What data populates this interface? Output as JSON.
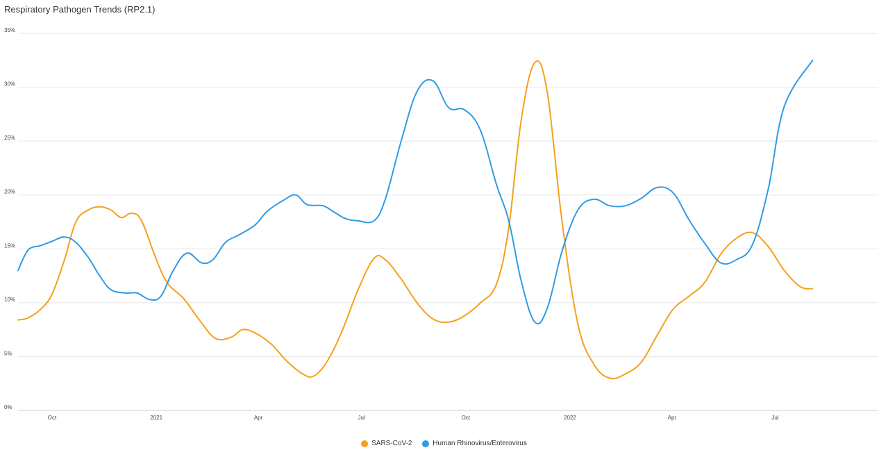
{
  "chart_data": {
    "type": "line",
    "title": "Respiratory Pathogen Trends (RP2.1)",
    "xlabel": "",
    "ylabel": "",
    "ylim": [
      0,
      35
    ],
    "y_ticks": [
      "0%",
      "5%",
      "10%",
      "15%",
      "20%",
      "25%",
      "30%",
      "35%"
    ],
    "x_range": [
      "2020-09-01",
      "2022-09-30"
    ],
    "x_ticks": [
      {
        "date": "2020-10-01",
        "label": "Oct"
      },
      {
        "date": "2021-01-01",
        "label": "2021"
      },
      {
        "date": "2021-04-01",
        "label": "Apr"
      },
      {
        "date": "2021-07-01",
        "label": "Jul"
      },
      {
        "date": "2021-10-01",
        "label": "Oct"
      },
      {
        "date": "2022-01-01",
        "label": "2022"
      },
      {
        "date": "2022-04-01",
        "label": "Apr"
      },
      {
        "date": "2022-07-01",
        "label": "Jul"
      }
    ],
    "grid": true,
    "legend": "bottom",
    "series": [
      {
        "name": "SARS-CoV-2",
        "color": "#f6a01a",
        "points": [
          [
            "2020-09-01",
            8.4
          ],
          [
            "2020-09-10",
            8.6
          ],
          [
            "2020-09-21",
            9.4
          ],
          [
            "2020-10-01",
            10.8
          ],
          [
            "2020-10-12",
            14.0
          ],
          [
            "2020-10-22",
            17.5
          ],
          [
            "2020-11-02",
            18.6
          ],
          [
            "2020-11-12",
            18.9
          ],
          [
            "2020-11-22",
            18.6
          ],
          [
            "2020-12-01",
            17.9
          ],
          [
            "2020-12-10",
            18.3
          ],
          [
            "2020-12-19",
            17.6
          ],
          [
            "2021-01-01",
            14.0
          ],
          [
            "2021-01-11",
            11.8
          ],
          [
            "2021-01-25",
            10.4
          ],
          [
            "2021-02-08",
            8.4
          ],
          [
            "2021-02-22",
            6.7
          ],
          [
            "2021-03-08",
            6.8
          ],
          [
            "2021-03-18",
            7.5
          ],
          [
            "2021-03-29",
            7.2
          ],
          [
            "2021-04-12",
            6.2
          ],
          [
            "2021-04-26",
            4.6
          ],
          [
            "2021-05-10",
            3.4
          ],
          [
            "2021-05-20",
            3.2
          ],
          [
            "2021-06-01",
            4.6
          ],
          [
            "2021-06-14",
            7.4
          ],
          [
            "2021-06-28",
            11.2
          ],
          [
            "2021-07-12",
            14.1
          ],
          [
            "2021-07-22",
            14.0
          ],
          [
            "2021-08-05",
            12.2
          ],
          [
            "2021-08-19",
            10.0
          ],
          [
            "2021-09-02",
            8.5
          ],
          [
            "2021-09-16",
            8.2
          ],
          [
            "2021-09-30",
            8.8
          ],
          [
            "2021-10-14",
            10.0
          ],
          [
            "2021-10-28",
            11.7
          ],
          [
            "2021-11-08",
            17.0
          ],
          [
            "2021-11-19",
            27.0
          ],
          [
            "2021-12-01",
            32.3
          ],
          [
            "2021-12-12",
            29.5
          ],
          [
            "2021-12-25",
            17.5
          ],
          [
            "2022-01-08",
            8.0
          ],
          [
            "2022-01-22",
            4.3
          ],
          [
            "2022-02-05",
            3.0
          ],
          [
            "2022-02-19",
            3.4
          ],
          [
            "2022-03-05",
            4.5
          ],
          [
            "2022-03-19",
            7.0
          ],
          [
            "2022-04-02",
            9.4
          ],
          [
            "2022-04-16",
            10.6
          ],
          [
            "2022-04-30",
            11.9
          ],
          [
            "2022-05-14",
            14.5
          ],
          [
            "2022-05-28",
            16.0
          ],
          [
            "2022-06-11",
            16.5
          ],
          [
            "2022-06-25",
            15.2
          ],
          [
            "2022-07-09",
            13.0
          ],
          [
            "2022-07-23",
            11.5
          ],
          [
            "2022-08-03",
            11.3
          ]
        ]
      },
      {
        "name": "Human Rhinovirus/Enterovirus",
        "color": "#2e9be6",
        "points": [
          [
            "2020-09-01",
            13.0
          ],
          [
            "2020-09-10",
            14.9
          ],
          [
            "2020-09-21",
            15.3
          ],
          [
            "2020-10-01",
            15.7
          ],
          [
            "2020-10-12",
            16.1
          ],
          [
            "2020-10-22",
            15.6
          ],
          [
            "2020-11-02",
            14.2
          ],
          [
            "2020-11-12",
            12.5
          ],
          [
            "2020-11-22",
            11.2
          ],
          [
            "2020-12-05",
            10.9
          ],
          [
            "2020-12-15",
            10.9
          ],
          [
            "2020-12-26",
            10.3
          ],
          [
            "2021-01-05",
            10.6
          ],
          [
            "2021-01-16",
            13.0
          ],
          [
            "2021-01-28",
            14.6
          ],
          [
            "2021-02-10",
            13.7
          ],
          [
            "2021-02-20",
            14.0
          ],
          [
            "2021-03-03",
            15.6
          ],
          [
            "2021-03-15",
            16.3
          ],
          [
            "2021-03-29",
            17.2
          ],
          [
            "2021-04-09",
            18.5
          ],
          [
            "2021-04-23",
            19.5
          ],
          [
            "2021-05-04",
            20.0
          ],
          [
            "2021-05-14",
            19.1
          ],
          [
            "2021-05-28",
            19.0
          ],
          [
            "2021-06-07",
            18.4
          ],
          [
            "2021-06-17",
            17.8
          ],
          [
            "2021-06-28",
            17.6
          ],
          [
            "2021-07-12",
            17.6
          ],
          [
            "2021-07-22",
            19.6
          ],
          [
            "2021-08-05",
            25.0
          ],
          [
            "2021-08-19",
            29.6
          ],
          [
            "2021-09-02",
            30.6
          ],
          [
            "2021-09-16",
            28.1
          ],
          [
            "2021-09-30",
            27.9
          ],
          [
            "2021-10-14",
            26.0
          ],
          [
            "2021-10-28",
            21.0
          ],
          [
            "2021-11-08",
            17.6
          ],
          [
            "2021-11-19",
            12.0
          ],
          [
            "2021-12-01",
            8.2
          ],
          [
            "2021-12-12",
            9.5
          ],
          [
            "2021-12-25",
            14.8
          ],
          [
            "2022-01-08",
            18.6
          ],
          [
            "2022-01-22",
            19.6
          ],
          [
            "2022-02-05",
            19.0
          ],
          [
            "2022-02-19",
            19.0
          ],
          [
            "2022-03-05",
            19.7
          ],
          [
            "2022-03-19",
            20.7
          ],
          [
            "2022-04-02",
            20.2
          ],
          [
            "2022-04-16",
            17.7
          ],
          [
            "2022-04-30",
            15.5
          ],
          [
            "2022-05-14",
            13.7
          ],
          [
            "2022-05-28",
            14.0
          ],
          [
            "2022-06-11",
            15.4
          ],
          [
            "2022-06-25",
            20.6
          ],
          [
            "2022-07-09",
            28.2
          ],
          [
            "2022-08-03",
            32.5
          ]
        ]
      }
    ]
  }
}
